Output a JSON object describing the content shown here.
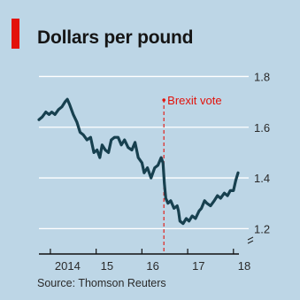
{
  "chart_data": {
    "type": "line",
    "title": "Dollars per pound",
    "source": "Source: Thomson Reuters",
    "ylim": [
      1.1,
      1.84
    ],
    "xlim": [
      2013.75,
      2018.12
    ],
    "y_ticks": [
      {
        "value": 1.8,
        "label": "1.8"
      },
      {
        "value": 1.6,
        "label": "1.6"
      },
      {
        "value": 1.4,
        "label": "1.4"
      },
      {
        "value": 1.2,
        "label": "1.2"
      }
    ],
    "x_ticks": [
      {
        "value": 2014,
        "label": "2014"
      },
      {
        "value": 2015,
        "label": "15"
      },
      {
        "value": 2016,
        "label": "16"
      },
      {
        "value": 2017,
        "label": "17"
      },
      {
        "value": 2018,
        "label": "18"
      }
    ],
    "grid": true,
    "axis_break": true,
    "annotation": {
      "label": "Brexit vote",
      "x": 2016.48
    },
    "series": [
      {
        "color": "#17404f",
        "x": [
          2013.75,
          2013.82,
          2013.9,
          2013.97,
          2014.03,
          2014.1,
          2014.18,
          2014.25,
          2014.32,
          2014.37,
          2014.42,
          2014.5,
          2014.58,
          2014.65,
          2014.72,
          2014.8,
          2014.88,
          2014.95,
          2015.02,
          2015.08,
          2015.13,
          2015.2,
          2015.27,
          2015.33,
          2015.4,
          2015.48,
          2015.55,
          2015.62,
          2015.7,
          2015.78,
          2015.85,
          2015.92,
          2016.0,
          2016.05,
          2016.12,
          2016.2,
          2016.28,
          2016.35,
          2016.42,
          2016.46,
          2016.49,
          2016.52,
          2016.57,
          2016.63,
          2016.7,
          2016.77,
          2016.8,
          2016.83,
          2016.9,
          2016.97,
          2017.03,
          2017.1,
          2017.17,
          2017.25,
          2017.3,
          2017.37,
          2017.42,
          2017.5,
          2017.58,
          2017.65,
          2017.72,
          2017.8,
          2017.87,
          2017.93,
          2018.0,
          2018.05,
          2018.1
        ],
        "y": [
          1.63,
          1.64,
          1.66,
          1.65,
          1.66,
          1.65,
          1.67,
          1.68,
          1.7,
          1.71,
          1.69,
          1.65,
          1.62,
          1.58,
          1.57,
          1.55,
          1.56,
          1.5,
          1.51,
          1.48,
          1.53,
          1.51,
          1.5,
          1.55,
          1.56,
          1.56,
          1.53,
          1.55,
          1.52,
          1.51,
          1.54,
          1.48,
          1.46,
          1.42,
          1.44,
          1.4,
          1.44,
          1.45,
          1.48,
          1.46,
          1.38,
          1.32,
          1.3,
          1.31,
          1.28,
          1.29,
          1.27,
          1.23,
          1.22,
          1.24,
          1.23,
          1.25,
          1.24,
          1.27,
          1.28,
          1.31,
          1.3,
          1.29,
          1.31,
          1.33,
          1.32,
          1.34,
          1.33,
          1.35,
          1.35,
          1.39,
          1.42
        ]
      }
    ]
  }
}
